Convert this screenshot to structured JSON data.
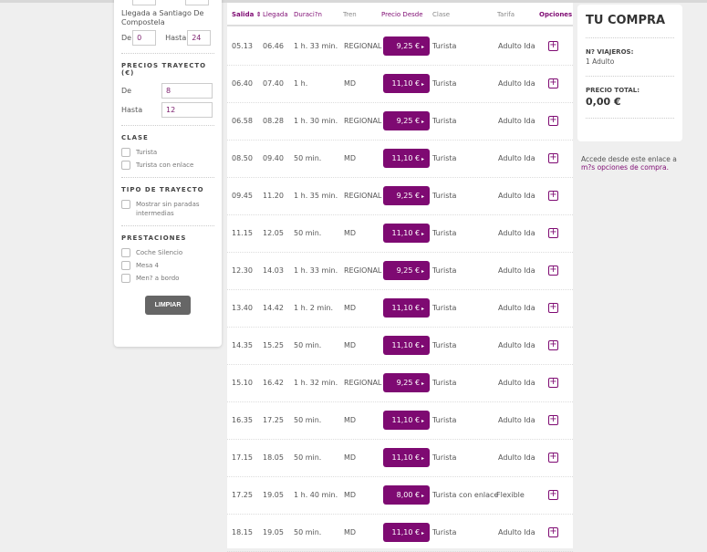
{
  "filters": {
    "arrival_label": "Llegada a Santiago De Compostela",
    "arrival_from_label": "De",
    "arrival_from": "0",
    "arrival_to_label": "Hasta",
    "arrival_to": "24",
    "prices_title": "PRECIOS TRAYECTO (€)",
    "price_from_label": "De",
    "price_from": "8",
    "price_to_label": "Hasta",
    "price_to": "12",
    "class_title": "CLASE",
    "class_options": [
      "Turista",
      "Turista con enlace"
    ],
    "route_title": "TIPO DE TRAYECTO",
    "route_options": [
      "Mostrar sin paradas intermedias"
    ],
    "services_title": "PRESTACIONES",
    "services_options": [
      "Coche Silencio",
      "Mesa 4",
      "Men? a bordo"
    ],
    "clear_label": "LIMPIAR"
  },
  "table": {
    "headers": [
      "Salida ⇕",
      "Llegada",
      "Duraci?n",
      "Tren",
      "Precio Desde",
      "Clase",
      "Tarifa",
      "Opciones"
    ],
    "rows": [
      [
        "05.13",
        "06.46",
        "1 h. 33 min.",
        "REGIONAL",
        "9,25 €",
        "Turista",
        "Adulto Ida"
      ],
      [
        "06.40",
        "07.40",
        "1 h.",
        "MD",
        "11,10 €",
        "Turista",
        "Adulto Ida"
      ],
      [
        "06.58",
        "08.28",
        "1 h. 30 min.",
        "REGIONAL",
        "9,25 €",
        "Turista",
        "Adulto Ida"
      ],
      [
        "08.50",
        "09.40",
        "50 min.",
        "MD",
        "11,10 €",
        "Turista",
        "Adulto Ida"
      ],
      [
        "09.45",
        "11.20",
        "1 h. 35 min.",
        "REGIONAL",
        "9,25 €",
        "Turista",
        "Adulto Ida"
      ],
      [
        "11.15",
        "12.05",
        "50 min.",
        "MD",
        "11,10 €",
        "Turista",
        "Adulto Ida"
      ],
      [
        "12.30",
        "14.03",
        "1 h. 33 min.",
        "REGIONAL",
        "9,25 €",
        "Turista",
        "Adulto Ida"
      ],
      [
        "13.40",
        "14.42",
        "1 h. 2 min.",
        "MD",
        "11,10 €",
        "Turista",
        "Adulto Ida"
      ],
      [
        "14.35",
        "15.25",
        "50 min.",
        "MD",
        "11,10 €",
        "Turista",
        "Adulto Ida"
      ],
      [
        "15.10",
        "16.42",
        "1 h. 32 min.",
        "REGIONAL",
        "9,25 €",
        "Turista",
        "Adulto Ida"
      ],
      [
        "16.35",
        "17.25",
        "50 min.",
        "MD",
        "11,10 €",
        "Turista",
        "Adulto Ida"
      ],
      [
        "17.15",
        "18.05",
        "50 min.",
        "MD",
        "11,10 €",
        "Turista",
        "Adulto Ida"
      ],
      [
        "17.25",
        "19.05",
        "1 h. 40 min.",
        "MD",
        "8,00 €",
        "Turista con enlace",
        "Flexible"
      ],
      [
        "18.15",
        "19.05",
        "50 min.",
        "MD",
        "11,10 €",
        "Turista",
        "Adulto Ida"
      ]
    ]
  },
  "purchase": {
    "title": "TU COMPRA",
    "travelers_label": "N? VIAJEROS:",
    "travelers": "1 Adulto",
    "total_label": "PRECIO TOTAL:",
    "total": "0,00 €"
  },
  "note": {
    "text": "Accede desde este enlace a",
    "link": "m?s opciones de compra."
  },
  "colors": {
    "accent": "#7e0a72"
  }
}
